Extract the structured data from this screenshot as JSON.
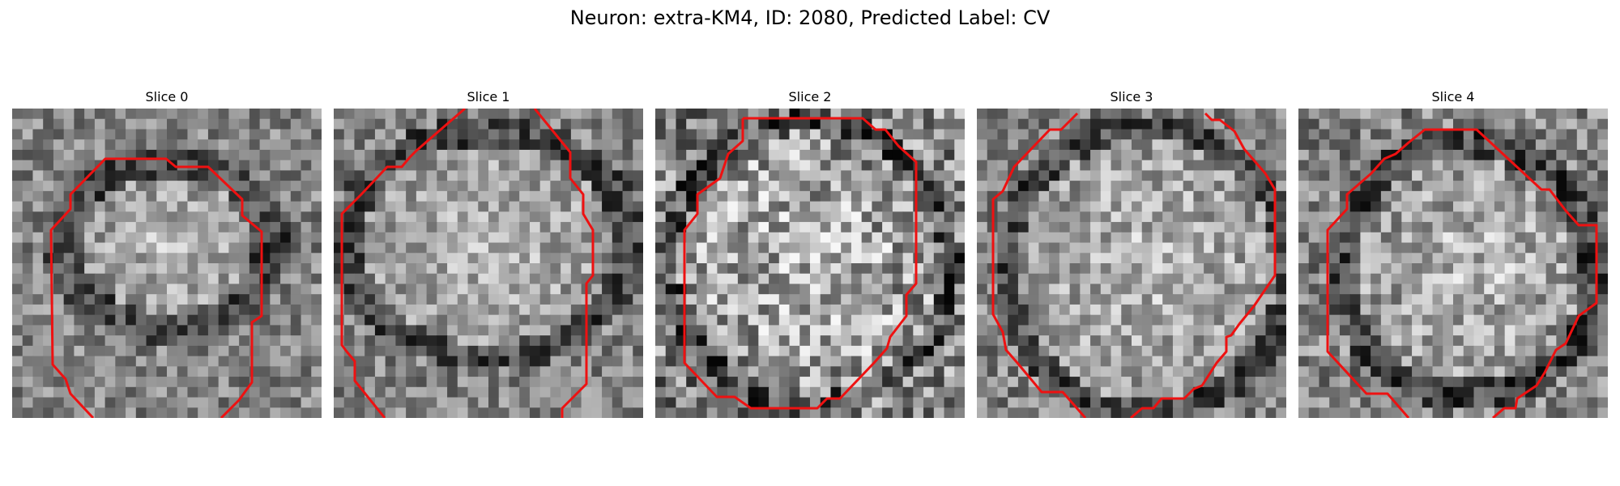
{
  "figure": {
    "title": "Neuron: extra-KM4, ID: 2080, Predicted Label: CV"
  },
  "panels": [
    {
      "title": "Slice 0"
    },
    {
      "title": "Slice 1"
    },
    {
      "title": "Slice 2"
    },
    {
      "title": "Slice 3"
    },
    {
      "title": "Slice 4"
    }
  ],
  "colors": {
    "contour": "#ee1111",
    "background": "#ffffff"
  }
}
